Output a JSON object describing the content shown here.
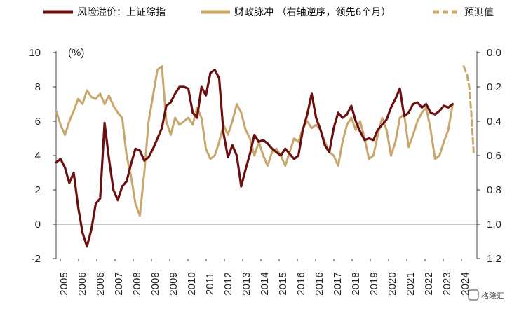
{
  "chart_data": {
    "type": "line",
    "legend": [
      {
        "label": "风险溢价：上证综指",
        "color": "#6b0f0f",
        "style": "solid"
      },
      {
        "label": "财政脉冲 （右轴逆序，领先6个月）",
        "color": "#c9a66b",
        "style": "solid"
      },
      {
        "label": "预测值",
        "color": "#c9a66b",
        "style": "dashed"
      }
    ],
    "left_axis": {
      "unit_label": "(%)",
      "min": -2,
      "max": 10,
      "ticks": [
        "10",
        "8",
        "6",
        "4",
        "2",
        "0",
        "-2"
      ]
    },
    "right_axis": {
      "min": 0.0,
      "max": 1.2,
      "inverted": true,
      "ticks": [
        "0.0",
        "0.2",
        "0.4",
        "0.6",
        "0.8",
        "1.0",
        "1.2"
      ]
    },
    "x_axis": {
      "ticks": [
        "2005",
        "2006",
        "2006",
        "2007",
        "2008",
        "2008",
        "2009",
        "2010",
        "2011",
        "2012",
        "2013",
        "2014",
        "2015",
        "2016",
        "2016",
        "2017",
        "2018",
        "2019",
        "2020",
        "2021",
        "2022",
        "2023",
        "2024"
      ]
    },
    "series": [
      {
        "name": "风险溢价：上证综指",
        "axis": "left",
        "color": "#6b0f0f",
        "x": [
          2005.0,
          2005.2,
          2005.4,
          2005.6,
          2005.8,
          2006.0,
          2006.2,
          2006.4,
          2006.6,
          2006.8,
          2007.0,
          2007.2,
          2007.4,
          2007.6,
          2007.8,
          2008.0,
          2008.2,
          2008.4,
          2008.6,
          2008.8,
          2009.0,
          2009.2,
          2009.4,
          2009.6,
          2009.8,
          2010.0,
          2010.2,
          2010.4,
          2010.6,
          2010.8,
          2011.0,
          2011.2,
          2011.4,
          2011.6,
          2011.8,
          2012.0,
          2012.2,
          2012.4,
          2012.6,
          2012.8,
          2013.0,
          2013.2,
          2013.4,
          2013.6,
          2013.8,
          2014.0,
          2014.2,
          2014.4,
          2014.6,
          2014.8,
          2015.0,
          2015.2,
          2015.4,
          2015.6,
          2015.8,
          2016.0,
          2016.2,
          2016.4,
          2016.6,
          2016.8,
          2017.0,
          2017.2,
          2017.4,
          2017.6,
          2017.8,
          2018.0,
          2018.2,
          2018.4,
          2018.6,
          2018.8,
          2019.0,
          2019.2,
          2019.4,
          2019.6,
          2019.8,
          2020.0,
          2020.2,
          2020.4,
          2020.6,
          2020.8,
          2021.0,
          2021.2,
          2021.4,
          2021.6,
          2021.8,
          2022.0,
          2022.2,
          2022.4,
          2022.6,
          2022.8,
          2023.0
        ],
        "y": [
          3.6,
          3.8,
          3.3,
          2.4,
          3.0,
          1.0,
          -0.5,
          -1.3,
          -0.3,
          1.2,
          1.5,
          5.9,
          3.8,
          2.0,
          1.4,
          2.2,
          2.5,
          3.5,
          4.4,
          4.3,
          3.7,
          3.9,
          4.4,
          5.0,
          5.6,
          6.9,
          7.1,
          7.6,
          8.0,
          8.0,
          7.9,
          6.5,
          6.2,
          8.0,
          7.5,
          8.8,
          9.0,
          8.5,
          5.3,
          3.9,
          4.6,
          4.0,
          2.2,
          3.2,
          4.1,
          5.2,
          4.8,
          4.9,
          4.7,
          4.4,
          4.2,
          4.0,
          4.4,
          4.1,
          3.8,
          4.0,
          5.5,
          6.4,
          7.6,
          6.2,
          5.5,
          4.6,
          4.2,
          5.6,
          6.5,
          6.2,
          6.4,
          6.9,
          6.0,
          5.4,
          4.9,
          5.0,
          4.9,
          5.5,
          5.8,
          6.1,
          6.8,
          7.3,
          7.9,
          6.3,
          6.5,
          7.0,
          7.1,
          6.8,
          7.0,
          6.5,
          6.4,
          6.6,
          6.9,
          6.8,
          7.0
        ]
      },
      {
        "name": "财政脉冲 （右轴逆序，领先6个月）",
        "axis": "right",
        "color": "#c9a66b",
        "x": [
          2005.0,
          2005.2,
          2005.4,
          2005.6,
          2005.8,
          2006.0,
          2006.2,
          2006.4,
          2006.6,
          2006.8,
          2007.0,
          2007.2,
          2007.4,
          2007.6,
          2007.8,
          2008.0,
          2008.2,
          2008.4,
          2008.6,
          2008.8,
          2009.0,
          2009.2,
          2009.4,
          2009.6,
          2009.8,
          2010.0,
          2010.2,
          2010.4,
          2010.6,
          2010.8,
          2011.0,
          2011.2,
          2011.4,
          2011.6,
          2011.8,
          2012.0,
          2012.2,
          2012.4,
          2012.6,
          2012.8,
          2013.0,
          2013.2,
          2013.4,
          2013.6,
          2013.8,
          2014.0,
          2014.2,
          2014.4,
          2014.6,
          2014.8,
          2015.0,
          2015.2,
          2015.4,
          2015.6,
          2015.8,
          2016.0,
          2016.2,
          2016.4,
          2016.6,
          2016.8,
          2017.0,
          2017.2,
          2017.4,
          2017.6,
          2017.8,
          2018.0,
          2018.2,
          2018.4,
          2018.6,
          2018.8,
          2019.0,
          2019.2,
          2019.4,
          2019.6,
          2019.8,
          2020.0,
          2020.2,
          2020.4,
          2020.6,
          2020.8,
          2021.0,
          2021.2,
          2021.4,
          2021.6,
          2021.8,
          2022.0,
          2022.2,
          2022.4,
          2022.6,
          2022.8,
          2023.0
        ],
        "y": [
          0.34,
          0.42,
          0.48,
          0.4,
          0.34,
          0.27,
          0.3,
          0.22,
          0.26,
          0.27,
          0.24,
          0.3,
          0.25,
          0.31,
          0.35,
          0.38,
          0.6,
          0.72,
          0.88,
          0.95,
          0.7,
          0.4,
          0.25,
          0.1,
          0.08,
          0.4,
          0.48,
          0.38,
          0.42,
          0.4,
          0.38,
          0.42,
          0.32,
          0.38,
          0.56,
          0.62,
          0.6,
          0.52,
          0.42,
          0.48,
          0.4,
          0.3,
          0.35,
          0.45,
          0.5,
          0.6,
          0.52,
          0.6,
          0.66,
          0.58,
          0.56,
          0.6,
          0.66,
          0.58,
          0.5,
          0.52,
          0.44,
          0.4,
          0.44,
          0.42,
          0.45,
          0.52,
          0.58,
          0.6,
          0.66,
          0.52,
          0.42,
          0.38,
          0.45,
          0.4,
          0.5,
          0.62,
          0.6,
          0.48,
          0.38,
          0.45,
          0.6,
          0.52,
          0.38,
          0.36,
          0.55,
          0.48,
          0.4,
          0.35,
          0.32,
          0.45,
          0.62,
          0.6,
          0.52,
          0.45,
          0.3
        ]
      },
      {
        "name": "预测值",
        "axis": "right",
        "color": "#c9a66b",
        "x": [
          2023.5,
          2023.65,
          2023.75,
          2023.85,
          2023.95
        ],
        "y": [
          0.08,
          0.13,
          0.2,
          0.36,
          0.58
        ]
      }
    ]
  },
  "watermark": {
    "text": "格隆汇"
  }
}
